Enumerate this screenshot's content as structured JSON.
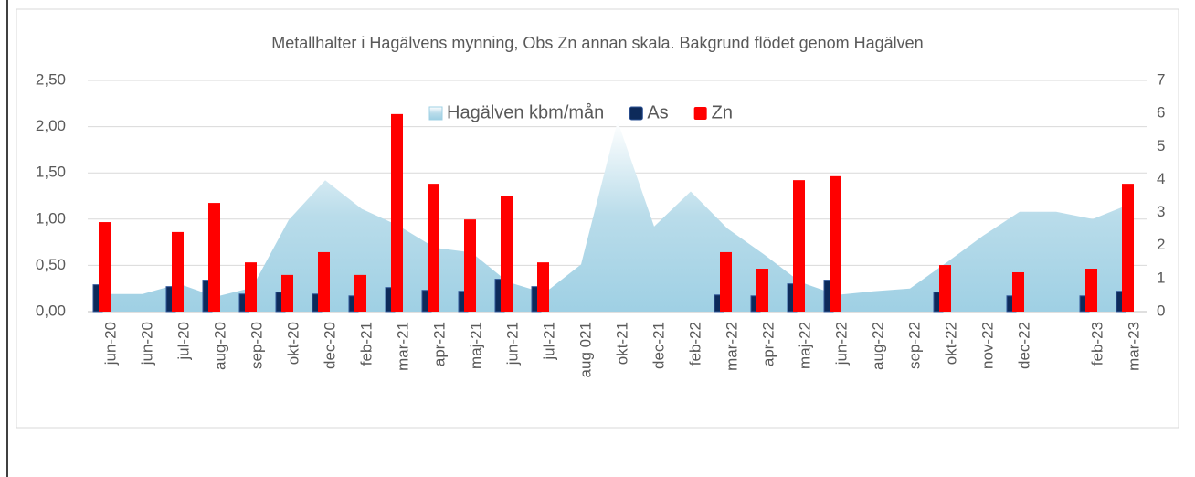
{
  "chart_data": {
    "type": "bar",
    "title": "Metallhalter i Hagälvens mynning, Obs Zn annan skala. Bakgrund flödet genom Hagälven",
    "categories": [
      "jun-20",
      "jun-20",
      "jul-20",
      "aug-20",
      "sep-20",
      "okt-20",
      "dec-20",
      "feb-21",
      "mar-21",
      "apr-21",
      "maj-21",
      "jun-21",
      "jul-21",
      "aug 021",
      "okt-21",
      "dec-21",
      "feb-22",
      "mar-22",
      "apr-22",
      "maj-22",
      "jun-22",
      "aug-22",
      "sep-22",
      "okt-22",
      "nov-22",
      "dec-22",
      null,
      "feb-23",
      "mar-23"
    ],
    "series": [
      {
        "name": "Hagälven kbm/mån",
        "type": "area",
        "color": "#9fd0e4",
        "axis": "y",
        "values": [
          0.19,
          0.19,
          0.3,
          0.16,
          0.26,
          0.99,
          1.42,
          1.11,
          0.93,
          0.69,
          0.64,
          0.32,
          0.2,
          0.51,
          2.06,
          0.92,
          1.3,
          0.9,
          0.62,
          0.32,
          0.18,
          0.22,
          0.25,
          0.53,
          0.82,
          1.08,
          1.08,
          1.0,
          1.16
        ]
      },
      {
        "name": "As",
        "type": "bar",
        "color": "#0d2a5a",
        "axis": "y",
        "values": [
          0.29,
          null,
          0.27,
          0.34,
          0.19,
          0.21,
          0.19,
          0.17,
          0.26,
          0.23,
          0.22,
          0.35,
          0.27,
          null,
          null,
          null,
          null,
          0.18,
          0.17,
          0.3,
          0.34,
          null,
          null,
          0.21,
          null,
          0.17,
          null,
          0.17,
          0.22
        ]
      },
      {
        "name": "Zn",
        "type": "bar",
        "color": "#ff0000",
        "axis": "y2",
        "values": [
          2.71,
          null,
          2.41,
          3.29,
          1.49,
          1.11,
          1.8,
          1.11,
          5.98,
          3.87,
          2.79,
          3.49,
          1.49,
          null,
          null,
          null,
          null,
          1.8,
          1.3,
          3.98,
          4.1,
          null,
          null,
          1.41,
          null,
          1.19,
          null,
          1.3,
          3.87
        ]
      }
    ],
    "ylim": [
      0,
      2.5
    ],
    "yticks": [
      {
        "value": 0,
        "label": "0,00"
      },
      {
        "value": 0.5,
        "label": "0,50"
      },
      {
        "value": 1,
        "label": "1,00"
      },
      {
        "value": 1.5,
        "label": "1,50"
      },
      {
        "value": 2,
        "label": "2,00"
      },
      {
        "value": 2.5,
        "label": "2,50"
      }
    ],
    "y2lim": [
      0,
      7
    ],
    "y2ticks": [
      0,
      1,
      2,
      3,
      4,
      5,
      6,
      7
    ],
    "grid": true,
    "legend": "top"
  }
}
